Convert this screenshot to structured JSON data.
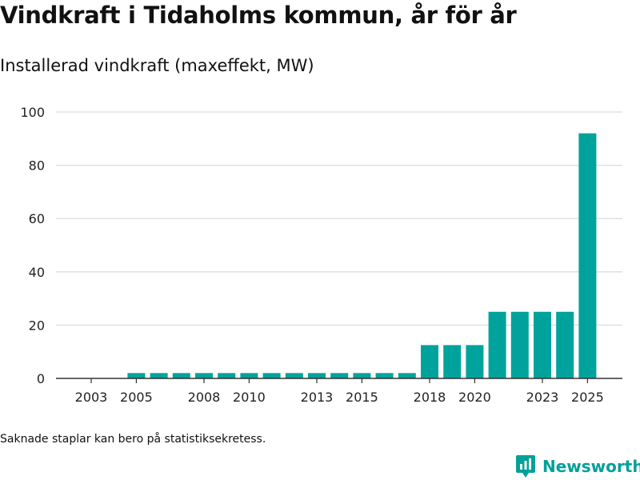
{
  "title": "Vindkraft i Tidaholms kommun, år för år",
  "subtitle": "Installerad vindkraft (maxeffekt, MW)",
  "footnote": "Saknade staplar kan bero på statistiksekretess.",
  "brand": {
    "name": "Newsworthy",
    "icon": "newsworthy-logo-icon"
  },
  "colors": {
    "bar": "#00a39b",
    "grid": "#dddddd",
    "axis": "#333333",
    "brand": "#00a19a"
  },
  "chart_data": {
    "type": "bar",
    "title": "Installerad vindkraft (maxeffekt, MW)",
    "xlabel": "",
    "ylabel": "",
    "ylim": [
      0,
      100
    ],
    "yticks": [
      0,
      20,
      40,
      60,
      80,
      100
    ],
    "xtick_labels": [
      "2003",
      "2005",
      "2008",
      "2010",
      "2013",
      "2015",
      "2018",
      "2020",
      "2023",
      "2025"
    ],
    "categories": [
      "2003",
      "2004",
      "2005",
      "2006",
      "2007",
      "2008",
      "2009",
      "2010",
      "2011",
      "2012",
      "2013",
      "2014",
      "2015",
      "2016",
      "2017",
      "2018",
      "2019",
      "2020",
      "2021",
      "2022",
      "2023",
      "2024",
      "2025"
    ],
    "values": [
      null,
      null,
      2,
      2,
      2,
      2,
      2,
      2,
      2,
      2,
      2,
      2,
      2,
      2,
      2,
      12.5,
      12.5,
      12.5,
      25,
      25,
      25,
      25,
      92
    ],
    "grid": true,
    "legend": "none"
  }
}
